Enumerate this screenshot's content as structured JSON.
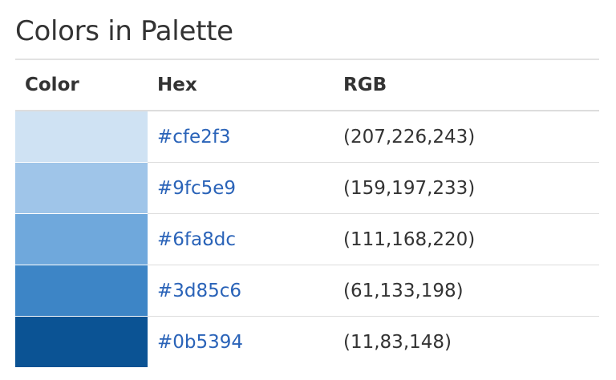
{
  "title": "Colors in Palette",
  "table": {
    "headers": {
      "color": "Color",
      "hex": "Hex",
      "rgb": "RGB"
    },
    "rows": [
      {
        "swatch": "#cfe2f3",
        "hex": "#cfe2f3",
        "rgb": "(207,226,243)"
      },
      {
        "swatch": "#9fc5e9",
        "hex": "#9fc5e9",
        "rgb": "(159,197,233)"
      },
      {
        "swatch": "#6fa8dc",
        "hex": "#6fa8dc",
        "rgb": "(111,168,220)"
      },
      {
        "swatch": "#3d85c6",
        "hex": "#3d85c6",
        "rgb": "(61,133,198)"
      },
      {
        "swatch": "#0b5394",
        "hex": "#0b5394",
        "rgb": "(11,83,148)"
      }
    ]
  },
  "colors": {
    "link": "#2a63b8",
    "text": "#333333",
    "rule": "#dddddd"
  }
}
